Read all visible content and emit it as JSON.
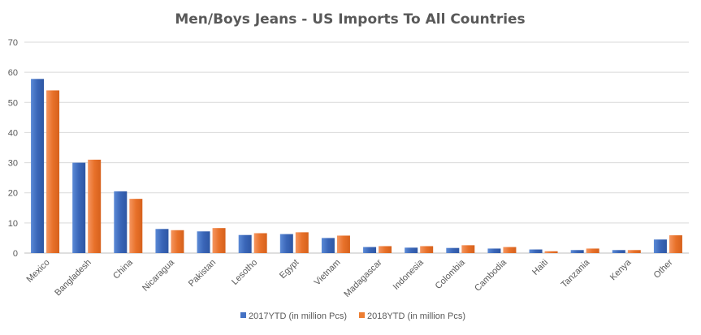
{
  "chart_data": {
    "type": "bar",
    "title": "Men/Boys Jeans - US Imports To All Countries",
    "xlabel": "",
    "ylabel": "",
    "ylim": [
      0,
      70
    ],
    "yticks": [
      0,
      10,
      20,
      30,
      40,
      50,
      60,
      70
    ],
    "grid": true,
    "legend_position": "bottom",
    "categories": [
      "Mexico",
      "Bangladesh",
      "China",
      "Nicaragua",
      "Pakistan",
      "Lesotho",
      "Egypt",
      "Vietnam",
      "Madagascar",
      "Indonesia",
      "Colombia",
      "Cambodia",
      "Haiti",
      "Tanzania",
      "Kenya",
      "Other"
    ],
    "series": [
      {
        "name": "2017YTD (in million Pcs)",
        "color": "#4472C4",
        "values": [
          57.8,
          30.0,
          20.5,
          8.0,
          7.2,
          6.0,
          6.3,
          5.0,
          2.0,
          1.8,
          1.7,
          1.5,
          1.2,
          1.0,
          1.0,
          4.5
        ]
      },
      {
        "name": "2018YTD (in million Pcs)",
        "color": "#ED7D31",
        "values": [
          54.0,
          31.0,
          18.0,
          7.6,
          8.3,
          6.6,
          6.9,
          5.8,
          2.3,
          2.3,
          2.6,
          2.0,
          0.6,
          1.5,
          1.0,
          5.9
        ]
      }
    ]
  }
}
